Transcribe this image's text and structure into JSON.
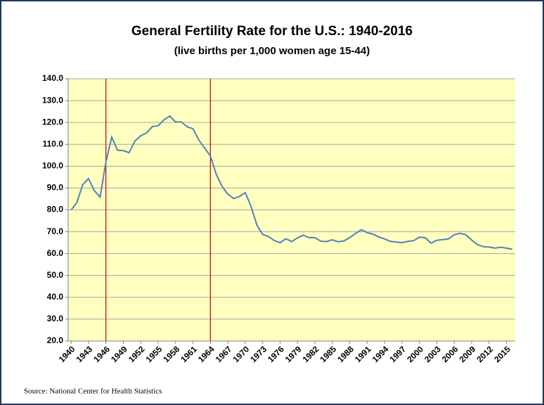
{
  "chart_data": {
    "type": "line",
    "title": "General Fertility Rate for the U.S.: 1940-2016",
    "subtitle": "(live births per 1,000 women age 15-44)",
    "source": "Source: National Center for Health Statistics",
    "categories": [
      "1940",
      null,
      null,
      "1943",
      null,
      null,
      "1946",
      null,
      null,
      "1949",
      null,
      null,
      "1952",
      null,
      null,
      "1955",
      null,
      null,
      "1958",
      null,
      null,
      "1961",
      null,
      null,
      "1964",
      null,
      null,
      "1967",
      null,
      null,
      "1970",
      null,
      null,
      "1973",
      null,
      null,
      "1976",
      null,
      null,
      "1979",
      null,
      null,
      "1982",
      null,
      null,
      "1985",
      null,
      null,
      "1988",
      null,
      null,
      "1991",
      null,
      null,
      "1994",
      null,
      null,
      "1997",
      null,
      null,
      "2000",
      null,
      null,
      "2003",
      null,
      null,
      "2006",
      null,
      null,
      "2009",
      null,
      null,
      "2012",
      null,
      null,
      "2015",
      null
    ],
    "series": [
      {
        "name": "General Fertility Rate",
        "color": "#4f81bd",
        "values": [
          79.9,
          83.4,
          91.5,
          94.3,
          88.8,
          85.9,
          101.9,
          113.3,
          107.3,
          107.1,
          106.2,
          111.5,
          113.9,
          115.2,
          118.1,
          118.5,
          121.2,
          122.9,
          120.2,
          120.2,
          118.0,
          117.1,
          112.0,
          108.3,
          104.7,
          96.3,
          90.8,
          87.2,
          85.2,
          86.1,
          87.9,
          81.6,
          73.1,
          68.8,
          67.8,
          66.0,
          65.0,
          66.8,
          65.5,
          67.2,
          68.4,
          67.3,
          67.3,
          65.7,
          65.5,
          66.3,
          65.4,
          65.8,
          67.3,
          69.2,
          70.9,
          69.6,
          68.9,
          67.6,
          66.7,
          65.6,
          65.3,
          65.0,
          65.6,
          65.9,
          67.5,
          67.3,
          64.8,
          66.1,
          66.4,
          66.7,
          68.6,
          69.3,
          68.6,
          66.2,
          64.1,
          63.2,
          63.0,
          62.5,
          62.9,
          62.5,
          62.0
        ]
      }
    ],
    "ylim": [
      20,
      140
    ],
    "yticks": [
      {
        "value": 20,
        "label": "20.0"
      },
      {
        "value": 30,
        "label": "30.0"
      },
      {
        "value": 40,
        "label": "40.0"
      },
      {
        "value": 50,
        "label": "50.0"
      },
      {
        "value": 60,
        "label": "60.0"
      },
      {
        "value": 70,
        "label": "70.0"
      },
      {
        "value": 80,
        "label": "80.0"
      },
      {
        "value": 90,
        "label": "90.0"
      },
      {
        "value": 100,
        "label": "100.0"
      },
      {
        "value": 110,
        "label": "110.0"
      },
      {
        "value": 120,
        "label": "120.0"
      },
      {
        "value": 130,
        "label": "130.0"
      },
      {
        "value": 140,
        "label": "140.0"
      }
    ],
    "grid": true,
    "plot_background": "#ffffc0",
    "vlines": [
      "1946",
      "1964"
    ],
    "vline_color": "#c00000"
  }
}
